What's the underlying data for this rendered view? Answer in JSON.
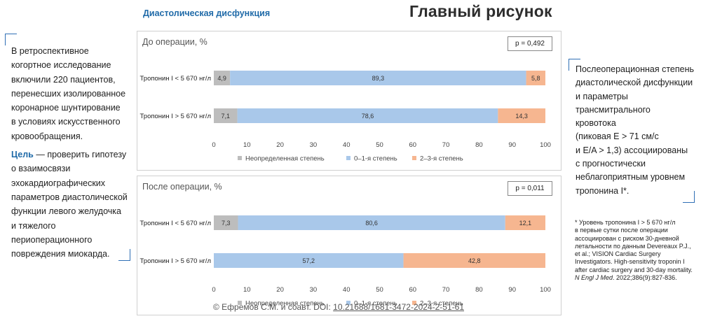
{
  "header": {
    "subtitle": "Диастолическая дисфункция",
    "title": "Главный рисунок"
  },
  "left_text": {
    "lines1": [
      "В ретроспективное",
      "когортное исследование",
      "включили 220 пациентов,",
      "перенесших изолированное",
      "коронарное шунтирование",
      "в условиях искусственного",
      "кровообращения."
    ],
    "goal_label": "Цель",
    "goal_first_rest": " — проверить гипотезу",
    "goal_lines": [
      "о взаимосвязи",
      "эхокардиографических",
      "параметров диастолической",
      "функции левого желудочка",
      "и тяжелого",
      "периоперационного",
      "повреждения миокарда."
    ]
  },
  "right_text": {
    "lines": [
      "Послеоперационная степень",
      "диастолической дисфункции",
      "и параметры",
      "трансмитрального",
      "кровотока",
      "(пиковая E > 71 см/с",
      "и E/A > 1,3) ассоциированы",
      "с прогностически",
      "неблагоприятным уровнем",
      "тропонина I*."
    ]
  },
  "footnote": {
    "lines": [
      "* Уровень тропонина I > 5 670 нг/л",
      "в первые сутки после операции",
      "ассоциирован с риском 30-дневной",
      "летальности по данным Devereaux P.J.,",
      "et al.; VISION Cardiac Surgery",
      "Investigators. High-sensitivity troponin I",
      "after cardiac surgery and 30-day mortality."
    ],
    "journal": "N Engl J Med",
    "citation_rest": ". 2022;386(9):827-836."
  },
  "copyright": {
    "prefix": "© Ефремов С.М. и соавт. DOI: ",
    "doi": "10.21688/1681-3472-2024-2-51-61"
  },
  "colors": {
    "undetermined": "#bdbdbd",
    "grade01": "#a9c8ea",
    "grade23": "#f6b690",
    "accent": "#2f6fb5"
  },
  "chart_data": [
    {
      "type": "bar",
      "orientation": "horizontal",
      "stacked": true,
      "title": "До операции, %",
      "p_value": "p = 0,492",
      "categories": [
        "Тропонин I < 5 670 нг/л",
        "Тропонин I > 5 670 нг/л"
      ],
      "series": [
        {
          "name": "Неопределенная степень",
          "values": [
            4.9,
            7.1
          ],
          "labels": [
            "4,9",
            "7,1"
          ]
        },
        {
          "name": "0–1-я степень",
          "values": [
            89.3,
            78.6
          ],
          "labels": [
            "89,3",
            "78,6"
          ]
        },
        {
          "name": "2–3-я степень",
          "values": [
            5.8,
            14.3
          ],
          "labels": [
            "5,8",
            "14,3"
          ]
        }
      ],
      "xlim": [
        0,
        100
      ],
      "xticks": [
        "0",
        "10",
        "20",
        "30",
        "40",
        "50",
        "60",
        "70",
        "80",
        "90",
        "100"
      ],
      "legend": "bottom"
    },
    {
      "type": "bar",
      "orientation": "horizontal",
      "stacked": true,
      "title": "После операции, %",
      "p_value": "p = 0,011",
      "categories": [
        "Тропонин I < 5 670 нг/л",
        "Тропонин I > 5 670 нг/л"
      ],
      "series": [
        {
          "name": "Неопределенная степень",
          "values": [
            7.3,
            0
          ],
          "labels": [
            "7,3",
            ""
          ]
        },
        {
          "name": "0–1-я степень",
          "values": [
            80.6,
            57.2
          ],
          "labels": [
            "80,6",
            "57,2"
          ]
        },
        {
          "name": "2–3-я степень",
          "values": [
            12.1,
            42.8
          ],
          "labels": [
            "12,1",
            "42,8"
          ]
        }
      ],
      "xlim": [
        0,
        100
      ],
      "xticks": [
        "0",
        "10",
        "20",
        "30",
        "40",
        "50",
        "60",
        "70",
        "80",
        "90",
        "100"
      ],
      "legend": "bottom"
    }
  ]
}
